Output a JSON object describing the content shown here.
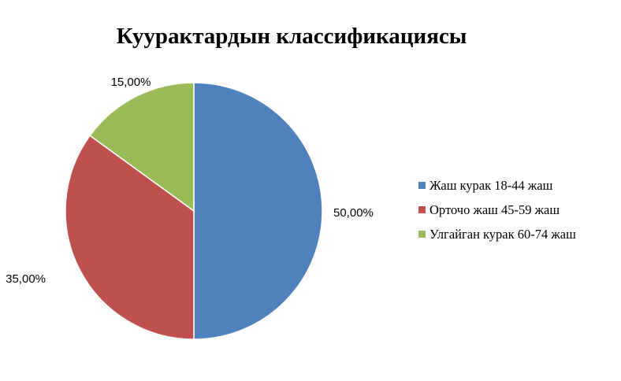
{
  "chart_data": {
    "type": "pie",
    "title": "Куурактардын классификациясы",
    "categories": [
      "Жаш курак 18-44 жаш",
      "Орточо жаш 45-59 жаш",
      "Улгайган курак 60-74 жаш"
    ],
    "values": [
      50,
      35,
      15
    ],
    "data_labels": [
      "50,00%",
      "35,00%",
      "15,00%"
    ],
    "colors": [
      "#4F81BD",
      "#C0504D",
      "#9BBB59"
    ],
    "start_angle": "12 o'clock",
    "direction": "clockwise",
    "legend_position": "right"
  }
}
